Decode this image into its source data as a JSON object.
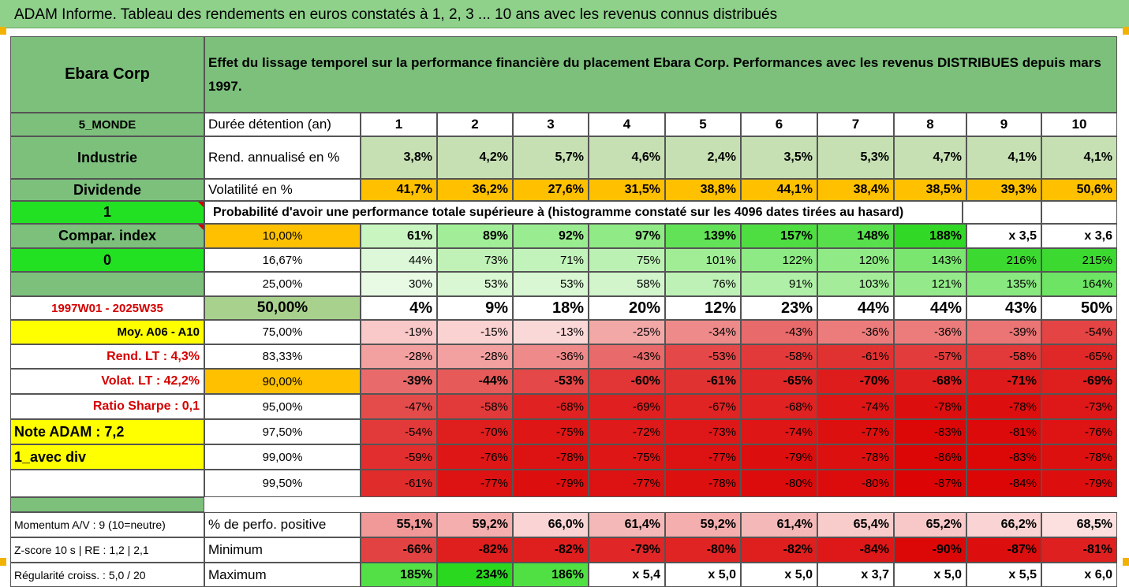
{
  "header_title": "ADAM Informe. Tableau des rendements en euros constatés à 1, 2, 3 ... 10 ans avec les revenus connus distribués",
  "company": "Ebara Corp",
  "description": "Effet du lissage temporel sur la performance financière du placement Ebara Corp. Performances avec les revenus DISTRIBUES depuis mars 1997.",
  "left_labels": [
    "5_MONDE",
    "Industrie",
    "Dividende",
    "1",
    "Compar. index",
    "0",
    "",
    "1997W01 - 2025W35",
    "Moy. A06 - A10",
    "Rend. LT :    4,3%",
    "Volat. LT :    42,2%",
    "Ratio Sharpe :    0,1",
    "Note ADAM : 7,2",
    "1_avec div",
    "",
    "",
    "Momentum A/V : 9 (10=neutre)",
    "Z-score 10 s  |  RE : 1,2  |  2,1",
    "Régularité croiss. : 5,0 / 20"
  ],
  "second_col": [
    "Durée détention (an)",
    "Rend. annualisé en %",
    "Volatilité en %",
    "",
    "10,00%",
    "16,67%",
    "25,00%",
    "50,00%",
    "75,00%",
    "83,33%",
    "90,00%",
    "95,00%",
    "97,50%",
    "99,00%",
    "99,50%",
    "",
    "% de perfo. positive",
    "Minimum",
    "Maximum"
  ],
  "prob_title": "Probabilité d'avoir une performance totale supérieure à (histogramme constaté sur les 4096 dates tirées au hasard)",
  "grid": [
    [
      "1",
      "2",
      "3",
      "4",
      "5",
      "6",
      "7",
      "8",
      "9",
      "10"
    ],
    [
      "3,8%",
      "4,2%",
      "5,7%",
      "4,6%",
      "2,4%",
      "3,5%",
      "5,3%",
      "4,7%",
      "4,1%",
      "4,1%"
    ],
    [
      "41,7%",
      "36,2%",
      "27,6%",
      "31,5%",
      "38,8%",
      "44,1%",
      "38,4%",
      "38,5%",
      "39,3%",
      "50,6%"
    ],
    [
      "",
      "",
      "",
      "",
      "",
      "",
      "",
      "",
      "",
      ""
    ],
    [
      "61%",
      "89%",
      "92%",
      "97%",
      "139%",
      "157%",
      "148%",
      "188%",
      "x 3,5",
      "x 3,6"
    ],
    [
      "44%",
      "73%",
      "71%",
      "75%",
      "101%",
      "122%",
      "120%",
      "143%",
      "216%",
      "215%"
    ],
    [
      "30%",
      "53%",
      "53%",
      "58%",
      "76%",
      "91%",
      "103%",
      "121%",
      "135%",
      "164%"
    ],
    [
      "4%",
      "9%",
      "18%",
      "20%",
      "12%",
      "23%",
      "44%",
      "44%",
      "43%",
      "50%"
    ],
    [
      "-19%",
      "-15%",
      "-13%",
      "-25%",
      "-34%",
      "-43%",
      "-36%",
      "-36%",
      "-39%",
      "-54%"
    ],
    [
      "-28%",
      "-28%",
      "-36%",
      "-43%",
      "-53%",
      "-58%",
      "-61%",
      "-57%",
      "-58%",
      "-65%"
    ],
    [
      "-39%",
      "-44%",
      "-53%",
      "-60%",
      "-61%",
      "-65%",
      "-70%",
      "-68%",
      "-71%",
      "-69%"
    ],
    [
      "-47%",
      "-58%",
      "-68%",
      "-69%",
      "-67%",
      "-68%",
      "-74%",
      "-78%",
      "-78%",
      "-73%"
    ],
    [
      "-54%",
      "-70%",
      "-75%",
      "-72%",
      "-73%",
      "-74%",
      "-77%",
      "-83%",
      "-81%",
      "-76%"
    ],
    [
      "-59%",
      "-76%",
      "-78%",
      "-75%",
      "-77%",
      "-79%",
      "-78%",
      "-86%",
      "-83%",
      "-78%"
    ],
    [
      "-61%",
      "-77%",
      "-79%",
      "-77%",
      "-78%",
      "-80%",
      "-80%",
      "-87%",
      "-84%",
      "-79%"
    ],
    [
      "",
      "",
      "",
      "",
      "",
      "",
      "",
      "",
      "",
      ""
    ],
    [
      "55,1%",
      "59,2%",
      "66,0%",
      "61,4%",
      "59,2%",
      "61,4%",
      "65,4%",
      "65,2%",
      "66,2%",
      "68,5%"
    ],
    [
      "-66%",
      "-82%",
      "-82%",
      "-79%",
      "-80%",
      "-82%",
      "-84%",
      "-90%",
      "-87%",
      "-81%"
    ],
    [
      "185%",
      "234%",
      "186%",
      "x 5,4",
      "x 5,0",
      "x 5,0",
      "x 3,7",
      "x 5,0",
      "x 5,5",
      "x 6,0"
    ]
  ],
  "colors": {
    "header_green": "#8FD18B",
    "label_green": "#7CC07C",
    "bright_green": "#22E022",
    "orange": "#FFC000",
    "yellow": "#FFFF00",
    "red_text": "#D40000"
  },
  "cell_colors": [
    [
      "#fff",
      "#fff",
      "#fff",
      "#fff",
      "#fff",
      "#fff",
      "#fff",
      "#fff",
      "#fff",
      "#fff"
    ],
    [
      "#C6E0B4",
      "#C6E0B4",
      "#C6E0B4",
      "#C6E0B4",
      "#C6E0B4",
      "#C6E0B4",
      "#C6E0B4",
      "#C6E0B4",
      "#C6E0B4",
      "#C6E0B4"
    ],
    [
      "#FFC000",
      "#FFC000",
      "#FFC000",
      "#FFC000",
      "#FFC000",
      "#FFC000",
      "#FFC000",
      "#FFC000",
      "#FFC000",
      "#FFC000"
    ],
    [
      "#fff",
      "#fff",
      "#fff",
      "#fff",
      "#fff",
      "#fff",
      "#fff",
      "#fff",
      "#fff",
      "#fff"
    ],
    [
      "#C8F5C0",
      "#A2EE98",
      "#9AEC90",
      "#90EA86",
      "#62E256",
      "#4EDE42",
      "#58E04C",
      "#32D826",
      "#fff",
      "#fff"
    ],
    [
      "#DDF8D8",
      "#C0F2B8",
      "#C2F3BA",
      "#BCF1B4",
      "#A0ED96",
      "#8EEA84",
      "#90EA86",
      "#7AE670",
      "#3CDA30",
      "#3CDA30"
    ],
    [
      "#E8FAE4",
      "#D8F7D2",
      "#D8F7D2",
      "#D2F5CC",
      "#BEF1B6",
      "#B0EFA8",
      "#A4EC9A",
      "#94EA8A",
      "#8AE880",
      "#6EE464"
    ],
    [
      "#fff",
      "#fff",
      "#fff",
      "#fff",
      "#fff",
      "#fff",
      "#fff",
      "#fff",
      "#fff",
      "#fff"
    ],
    [
      "#F9C8C8",
      "#FAD2D2",
      "#FBD8D8",
      "#F3A8A8",
      "#EE8A8A",
      "#E86A6A",
      "#EC7C7C",
      "#EC7C7C",
      "#EB7474",
      "#E44444"
    ],
    [
      "#F2A0A0",
      "#F2A0A0",
      "#EE8A8A",
      "#E86A6A",
      "#E44848",
      "#E23A3A",
      "#E13232",
      "#E23C3C",
      "#E23A3A",
      "#E02828"
    ],
    [
      "#E86A6A",
      "#E65A5A",
      "#E44848",
      "#E23636",
      "#E13232",
      "#E02828",
      "#DF1C1C",
      "#DF2020",
      "#DE1A1A",
      "#DF1E1E"
    ],
    [
      "#E44C4C",
      "#E23A3A",
      "#E02222",
      "#E02020",
      "#E02424",
      "#E02222",
      "#DE1616",
      "#DD0E0E",
      "#DD0E0E",
      "#DE1818"
    ],
    [
      "#E23A3A",
      "#DF1E1E",
      "#DE1616",
      "#DE1A1A",
      "#DE1818",
      "#DE1616",
      "#DD1010",
      "#DC0808",
      "#DC0A0A",
      "#DE1414"
    ],
    [
      "#E22E2E",
      "#DE1616",
      "#DD1212",
      "#DE1616",
      "#DD1212",
      "#DD0E0E",
      "#DD1010",
      "#DC0606",
      "#DC0808",
      "#DD1010"
    ],
    [
      "#E12C2C",
      "#DD1212",
      "#DD0E0E",
      "#DD1212",
      "#DD1010",
      "#DD0C0C",
      "#DD0C0C",
      "#DC0404",
      "#DC0606",
      "#DD0E0E"
    ],
    [
      "#fff",
      "#fff",
      "#fff",
      "#fff",
      "#fff",
      "#fff",
      "#fff",
      "#fff",
      "#fff",
      "#fff"
    ],
    [
      "#F19898",
      "#F4AEAE",
      "#FAD4D4",
      "#F5B8B8",
      "#F4AEAE",
      "#F5B8B8",
      "#F9CCCC",
      "#F8C8C8",
      "#FAD4D4",
      "#FCE0E0"
    ],
    [
      "#E34242",
      "#DF1E1E",
      "#DF1E1E",
      "#E02626",
      "#E02424",
      "#DF1E1E",
      "#DE1818",
      "#DC0808",
      "#DD0E0E",
      "#DF2020"
    ],
    [
      "#52E046",
      "#2BD820",
      "#50E044",
      "#fff",
      "#fff",
      "#fff",
      "#fff",
      "#fff",
      "#fff",
      "#fff"
    ]
  ]
}
